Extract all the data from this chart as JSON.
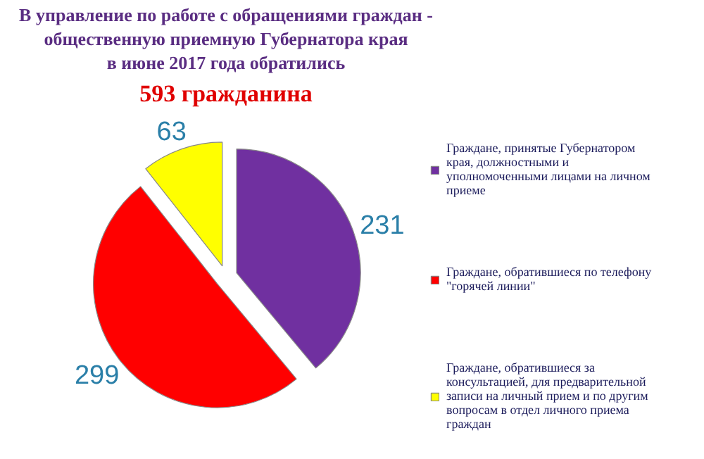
{
  "chart_data": {
    "type": "pie",
    "title": "В управление по работе с обращениями граждан -\nобщественную приемную Губернатора края\nв июне 2017 года обратились",
    "subtitle": "593 гражданина",
    "categories": [
      "Граждане, принятые Губернатором края, должностными и уполномоченными лицами на личном приеме",
      "Граждане, обратившиеся по телефону \"горячей линии\"",
      "Граждане, обратившиеся за консультацией, для предварительной записи на личный прием и по другим вопросам в отдел личного приема граждан"
    ],
    "values": [
      231,
      299,
      63
    ],
    "colors": [
      "#7030a0",
      "#ff0000",
      "#ffff00"
    ],
    "data_labels": true,
    "legend": "right"
  }
}
